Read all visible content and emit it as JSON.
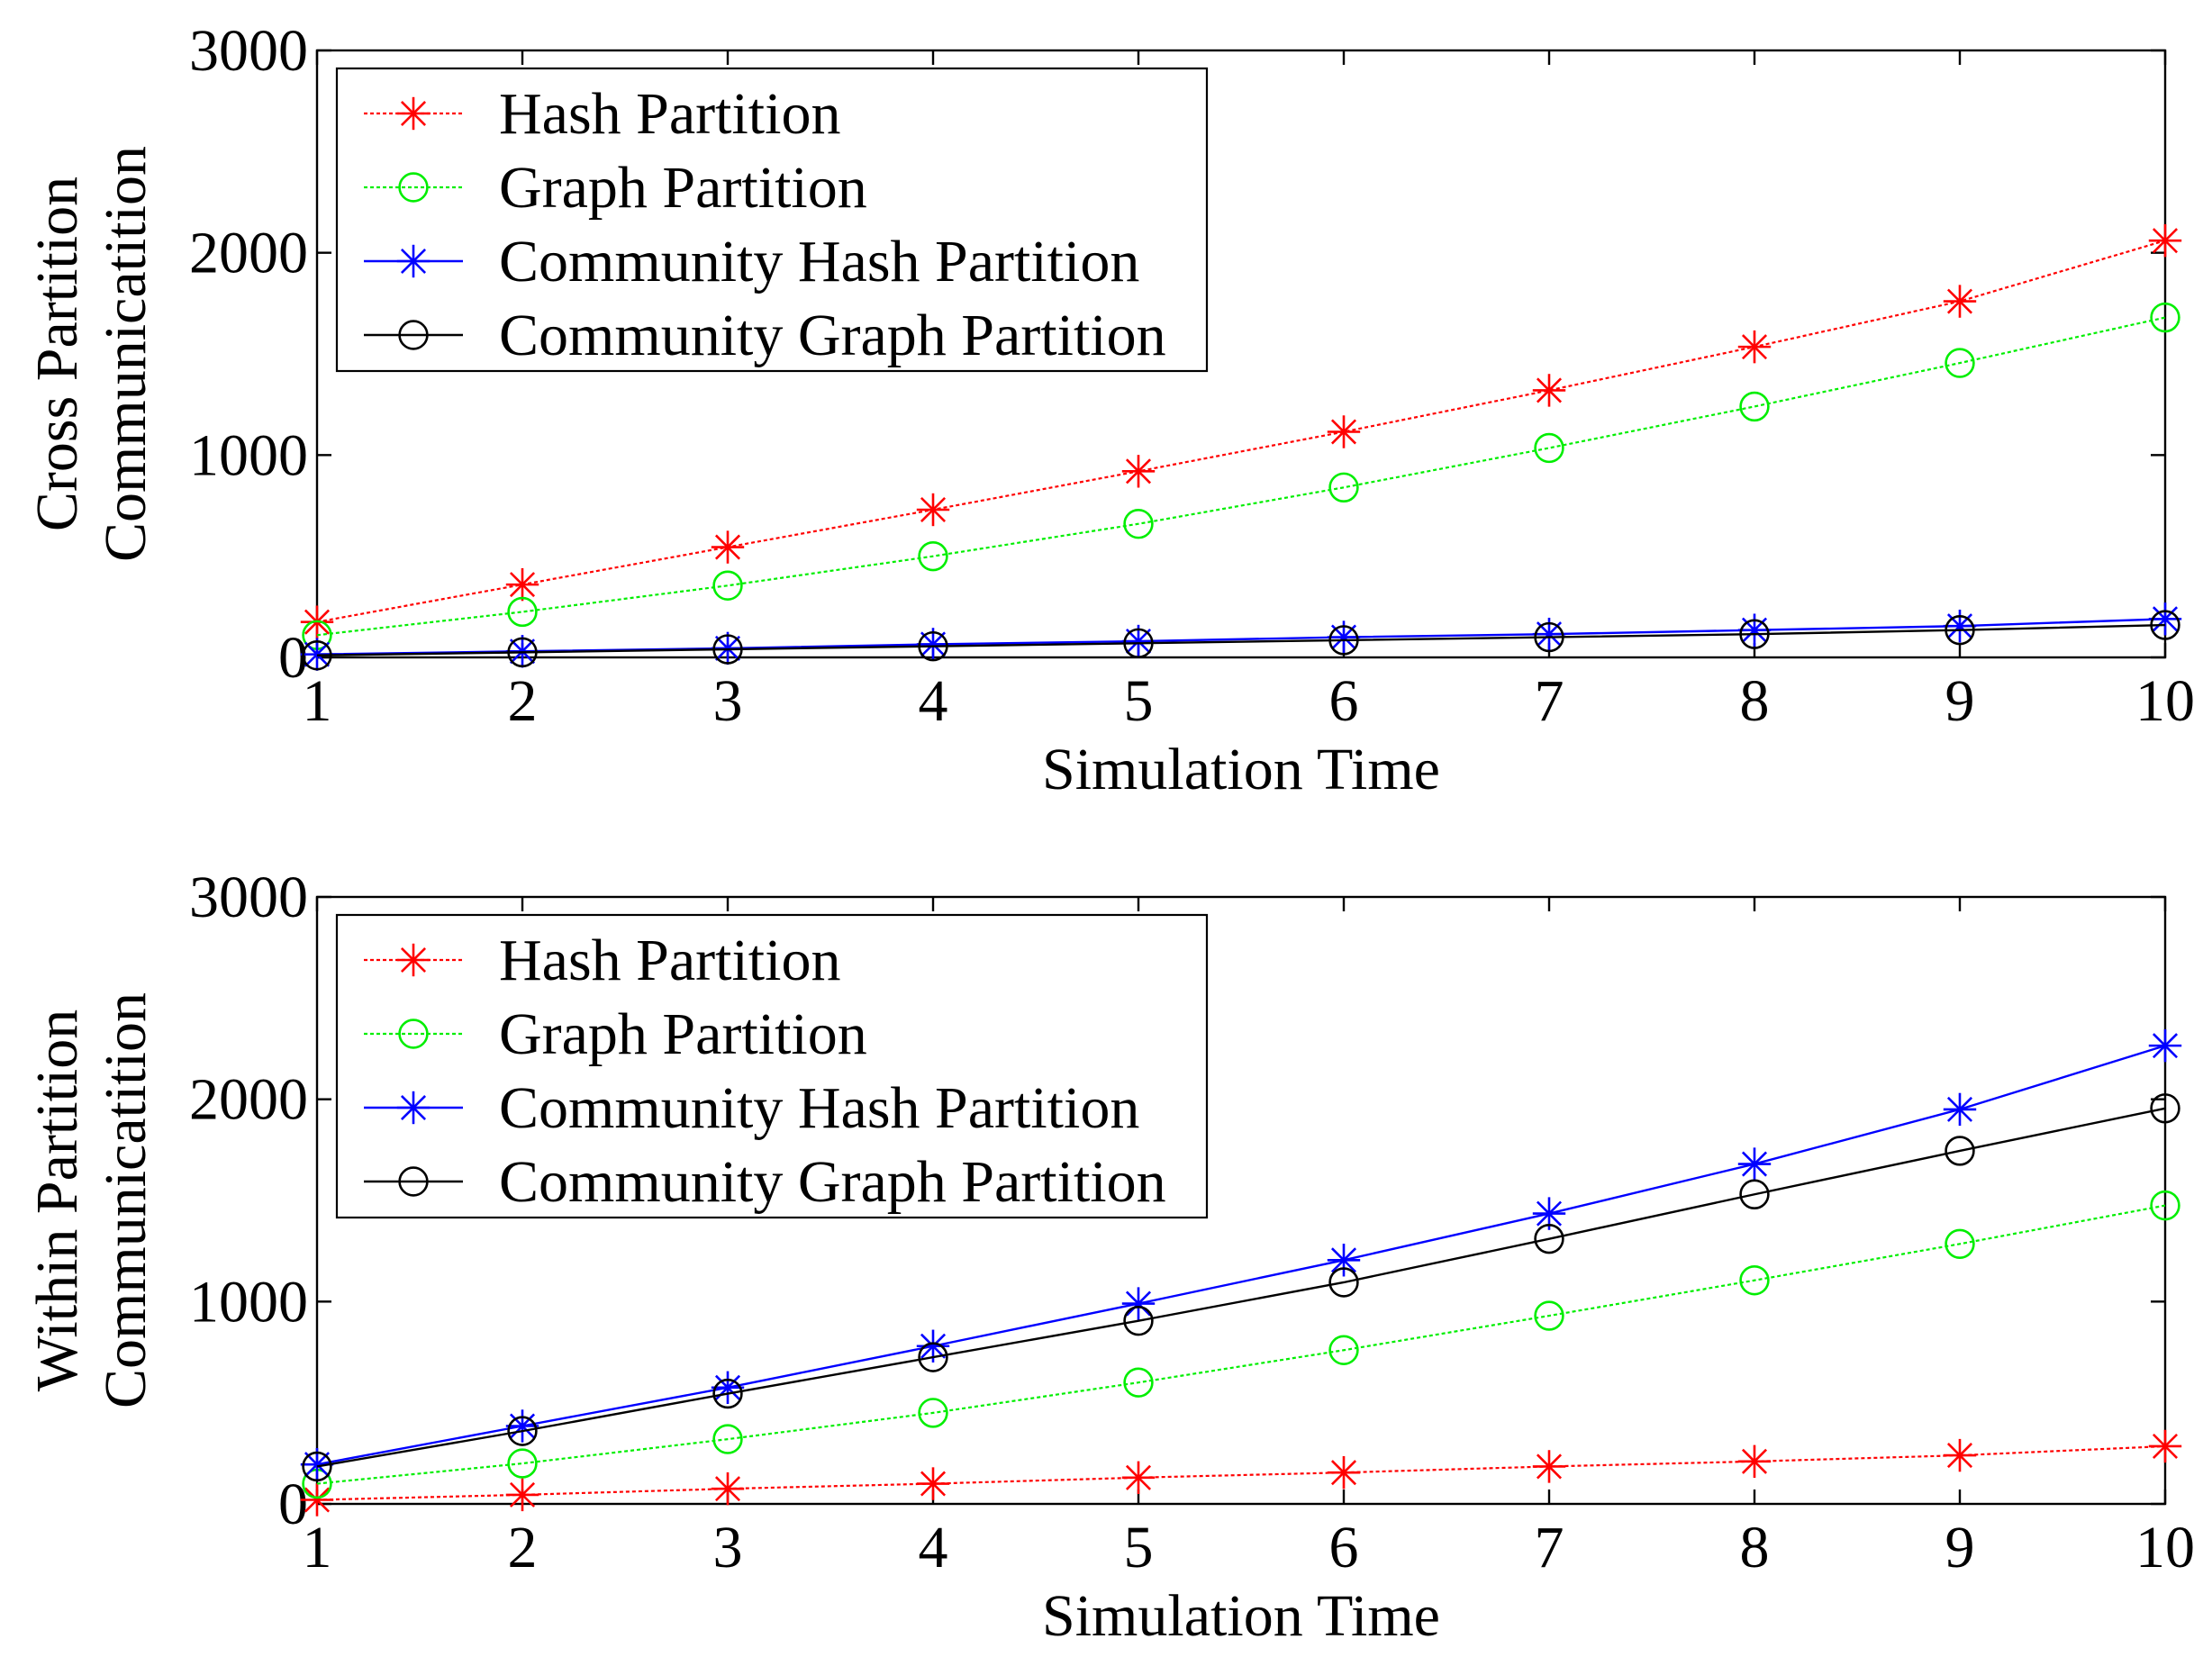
{
  "chart_data": [
    {
      "type": "line",
      "title": "",
      "xlabel": "Simulation Time",
      "ylabel": [
        "Cross Partition",
        "Communicatition"
      ],
      "xlim": [
        1,
        10
      ],
      "ylim": [
        0,
        3000
      ],
      "x": [
        1,
        2,
        3,
        4,
        5,
        6,
        7,
        8,
        9,
        10
      ],
      "xticks": [
        "1",
        "2",
        "3",
        "4",
        "5",
        "6",
        "7",
        "8",
        "9",
        "10"
      ],
      "yticks": [
        "0",
        "1000",
        "2000",
        "3000"
      ],
      "legend": "top-left",
      "grid": false,
      "series": [
        {
          "name": "Hash Partition",
          "color": "#ff0000",
          "marker": "asterisk",
          "dashed": true,
          "values": [
            175,
            360,
            545,
            730,
            920,
            1115,
            1320,
            1535,
            1760,
            2060
          ]
        },
        {
          "name": "Graph Partition",
          "color": "#00ee00",
          "marker": "circle",
          "dashed": true,
          "values": [
            110,
            225,
            355,
            500,
            660,
            840,
            1035,
            1240,
            1455,
            1680
          ]
        },
        {
          "name": "Community Hash Partition",
          "color": "#0000ff",
          "marker": "asterisk",
          "dashed": false,
          "values": [
            15,
            30,
            45,
            65,
            80,
            100,
            115,
            135,
            155,
            190
          ]
        },
        {
          "name": "Community Graph Partition",
          "color": "#000000",
          "marker": "circle",
          "dashed": false,
          "values": [
            10,
            25,
            40,
            55,
            70,
            85,
            100,
            115,
            135,
            160
          ]
        }
      ]
    },
    {
      "type": "line",
      "title": "",
      "xlabel": "Simulation Time",
      "ylabel": [
        "Within Partition",
        "Communicatition"
      ],
      "xlim": [
        1,
        10
      ],
      "ylim": [
        0,
        3000
      ],
      "x": [
        1,
        2,
        3,
        4,
        5,
        6,
        7,
        8,
        9,
        10
      ],
      "xticks": [
        "1",
        "2",
        "3",
        "4",
        "5",
        "6",
        "7",
        "8",
        "9",
        "10"
      ],
      "yticks": [
        "0",
        "1000",
        "2000",
        "3000"
      ],
      "legend": "top-left",
      "grid": false,
      "series": [
        {
          "name": "Hash Partition",
          "color": "#ff0000",
          "marker": "asterisk",
          "dashed": true,
          "values": [
            20,
            45,
            75,
            100,
            130,
            155,
            185,
            210,
            240,
            285
          ]
        },
        {
          "name": "Graph Partition",
          "color": "#00ee00",
          "marker": "circle",
          "dashed": true,
          "values": [
            100,
            200,
            320,
            450,
            600,
            760,
            930,
            1105,
            1285,
            1475
          ]
        },
        {
          "name": "Community Hash Partition",
          "color": "#0000ff",
          "marker": "asterisk",
          "dashed": false,
          "values": [
            195,
            385,
            575,
            780,
            990,
            1205,
            1435,
            1680,
            1950,
            2265
          ]
        },
        {
          "name": "Community Graph Partition",
          "color": "#000000",
          "marker": "circle",
          "dashed": false,
          "values": [
            185,
            360,
            545,
            725,
            905,
            1095,
            1310,
            1530,
            1745,
            1955
          ]
        }
      ]
    }
  ]
}
